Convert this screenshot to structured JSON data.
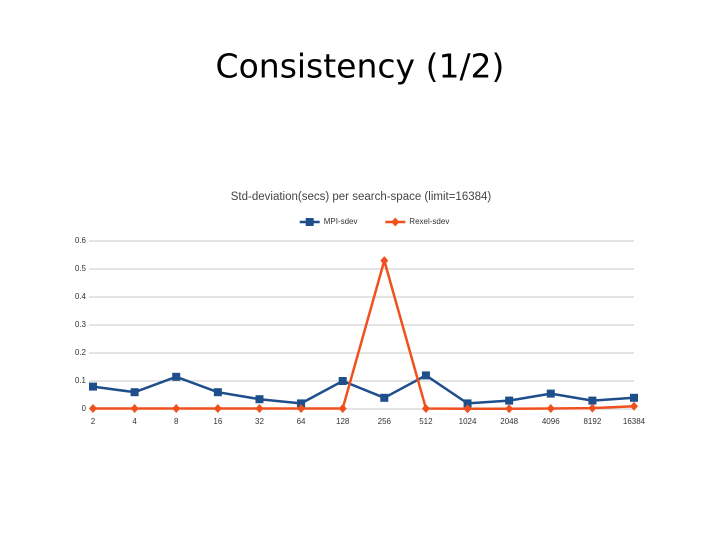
{
  "slide": {
    "title": "Consistency (1/2)"
  },
  "chart_data": {
    "type": "line",
    "title": "Std-deviation(secs) per search-space (limit=16384)",
    "categories": [
      "2",
      "4",
      "8",
      "16",
      "32",
      "64",
      "128",
      "256",
      "512",
      "1024",
      "2048",
      "4096",
      "8192",
      "16384"
    ],
    "series": [
      {
        "name": "MPI-sdev",
        "color": "#1f4e8c",
        "marker": "square",
        "values": [
          0.08,
          0.06,
          0.115,
          0.06,
          0.035,
          0.02,
          0.1,
          0.04,
          0.12,
          0.02,
          0.03,
          0.055,
          0.03,
          0.04
        ]
      },
      {
        "name": "Rexel-sdev",
        "color": "#f0501e",
        "marker": "diamond",
        "values": [
          0.002,
          0.002,
          0.002,
          0.002,
          0.002,
          0.002,
          0.002,
          0.53,
          0.002,
          0.001,
          0.001,
          0.002,
          0.003,
          0.01
        ]
      }
    ],
    "ylim": [
      0,
      0.6
    ],
    "yticks": [
      0,
      0.1,
      0.2,
      0.3,
      0.4,
      0.5,
      0.6
    ],
    "grid": true,
    "legend": "top"
  }
}
